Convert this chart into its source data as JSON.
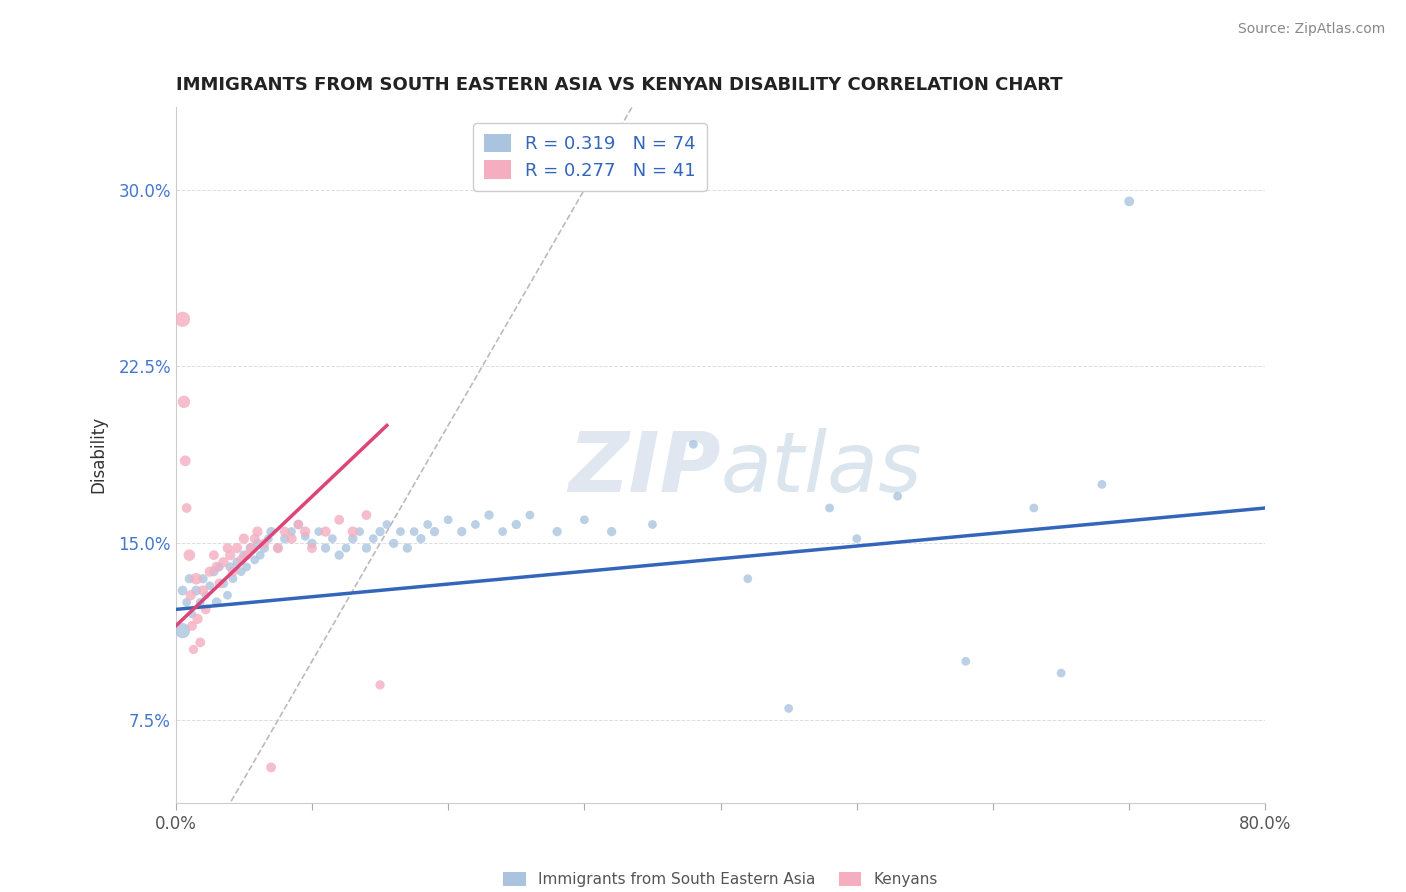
{
  "title": "IMMIGRANTS FROM SOUTH EASTERN ASIA VS KENYAN DISABILITY CORRELATION CHART",
  "source": "Source: ZipAtlas.com",
  "ylabel": "Disability",
  "xlim": [
    0.0,
    0.8
  ],
  "ylim": [
    0.04,
    0.335
  ],
  "yticks": [
    0.075,
    0.15,
    0.225,
    0.3
  ],
  "yticklabels": [
    "7.5%",
    "15.0%",
    "22.5%",
    "30.0%"
  ],
  "blue_R": "0.319",
  "blue_N": "74",
  "pink_R": "0.277",
  "pink_N": "41",
  "blue_color": "#aac4df",
  "pink_color": "#f4aec0",
  "blue_line_color": "#3366bb",
  "pink_line_color": "#dd4477",
  "ref_line_color": "#bbbbbb",
  "watermark_color": "#ccd8e8",
  "blue_scatter_x": [
    0.005,
    0.008,
    0.01,
    0.012,
    0.015,
    0.018,
    0.02,
    0.022,
    0.025,
    0.028,
    0.03,
    0.032,
    0.035,
    0.038,
    0.04,
    0.042,
    0.045,
    0.048,
    0.05,
    0.052,
    0.055,
    0.058,
    0.06,
    0.062,
    0.065,
    0.068,
    0.07,
    0.075,
    0.08,
    0.085,
    0.09,
    0.095,
    0.1,
    0.105,
    0.11,
    0.115,
    0.12,
    0.125,
    0.13,
    0.135,
    0.14,
    0.145,
    0.15,
    0.155,
    0.16,
    0.165,
    0.17,
    0.175,
    0.18,
    0.185,
    0.19,
    0.2,
    0.21,
    0.22,
    0.23,
    0.24,
    0.25,
    0.26,
    0.28,
    0.3,
    0.32,
    0.35,
    0.38,
    0.42,
    0.45,
    0.48,
    0.5,
    0.53,
    0.58,
    0.63,
    0.65,
    0.68,
    0.7,
    0.005
  ],
  "blue_scatter_y": [
    0.13,
    0.125,
    0.135,
    0.12,
    0.13,
    0.125,
    0.135,
    0.128,
    0.132,
    0.138,
    0.125,
    0.14,
    0.133,
    0.128,
    0.14,
    0.135,
    0.142,
    0.138,
    0.145,
    0.14,
    0.148,
    0.143,
    0.15,
    0.145,
    0.148,
    0.152,
    0.155,
    0.148,
    0.152,
    0.155,
    0.158,
    0.153,
    0.15,
    0.155,
    0.148,
    0.152,
    0.145,
    0.148,
    0.152,
    0.155,
    0.148,
    0.152,
    0.155,
    0.158,
    0.15,
    0.155,
    0.148,
    0.155,
    0.152,
    0.158,
    0.155,
    0.16,
    0.155,
    0.158,
    0.162,
    0.155,
    0.158,
    0.162,
    0.155,
    0.16,
    0.155,
    0.158,
    0.192,
    0.135,
    0.08,
    0.165,
    0.152,
    0.17,
    0.1,
    0.165,
    0.095,
    0.175,
    0.295,
    0.113
  ],
  "blue_scatter_size": [
    50,
    40,
    45,
    35,
    50,
    40,
    45,
    35,
    40,
    45,
    50,
    40,
    45,
    40,
    45,
    40,
    45,
    40,
    45,
    40,
    45,
    40,
    45,
    40,
    45,
    40,
    45,
    40,
    45,
    40,
    45,
    40,
    45,
    40,
    45,
    40,
    45,
    40,
    45,
    40,
    45,
    40,
    45,
    40,
    45,
    40,
    45,
    40,
    45,
    40,
    45,
    40,
    45,
    40,
    45,
    40,
    45,
    40,
    45,
    40,
    45,
    40,
    40,
    40,
    40,
    40,
    40,
    40,
    40,
    40,
    40,
    40,
    50,
    120
  ],
  "pink_scatter_x": [
    0.005,
    0.006,
    0.007,
    0.008,
    0.01,
    0.011,
    0.012,
    0.013,
    0.015,
    0.016,
    0.018,
    0.02,
    0.022,
    0.025,
    0.028,
    0.03,
    0.032,
    0.035,
    0.038,
    0.04,
    0.042,
    0.045,
    0.048,
    0.05,
    0.052,
    0.055,
    0.058,
    0.06,
    0.065,
    0.07,
    0.075,
    0.08,
    0.085,
    0.09,
    0.095,
    0.1,
    0.11,
    0.12,
    0.13,
    0.14,
    0.15
  ],
  "pink_scatter_y": [
    0.245,
    0.21,
    0.185,
    0.165,
    0.145,
    0.128,
    0.115,
    0.105,
    0.135,
    0.118,
    0.108,
    0.13,
    0.122,
    0.138,
    0.145,
    0.14,
    0.133,
    0.142,
    0.148,
    0.145,
    0.138,
    0.148,
    0.143,
    0.152,
    0.145,
    0.148,
    0.152,
    0.155,
    0.15,
    0.055,
    0.148,
    0.155,
    0.152,
    0.158,
    0.155,
    0.148,
    0.155,
    0.16,
    0.155,
    0.162,
    0.09
  ],
  "pink_scatter_size": [
    120,
    80,
    60,
    50,
    70,
    55,
    50,
    45,
    70,
    55,
    50,
    55,
    50,
    55,
    50,
    55,
    50,
    55,
    50,
    55,
    50,
    55,
    50,
    55,
    50,
    55,
    50,
    55,
    50,
    50,
    55,
    50,
    55,
    50,
    55,
    50,
    55,
    50,
    55,
    50,
    45
  ],
  "blue_trend": [
    0.0,
    0.8,
    0.122,
    0.165
  ],
  "pink_trend_x": [
    0.0,
    0.155
  ],
  "pink_trend_y": [
    0.115,
    0.2
  ]
}
